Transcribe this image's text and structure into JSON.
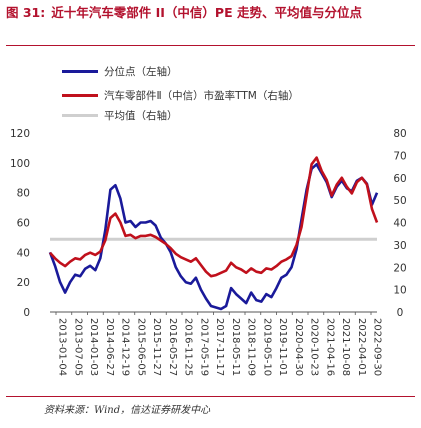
{
  "header": {
    "figure_number": "图 31:",
    "title": "近十年汽车零部件 II（中信）PE 走势、平均值与分位点"
  },
  "legend": [
    {
      "label": "分位点（左轴）",
      "color": "#1a1a9a"
    },
    {
      "label": "汽车零部件Ⅱ（中信）市盈率TTM（右轴）",
      "color": "#c0101c"
    },
    {
      "label": "平均值（右轴）",
      "color": "#cfcfcf"
    }
  ],
  "source": "资料来源：Wind，信达证券研发中心",
  "chart_data": {
    "type": "line",
    "left_axis": {
      "ticks": [
        "0",
        "20",
        "40",
        "60",
        "80",
        "100",
        "120"
      ],
      "ylim": [
        0,
        120
      ]
    },
    "right_axis": {
      "ticks": [
        "0",
        "10",
        "20",
        "30",
        "40",
        "50",
        "60",
        "70",
        "80"
      ],
      "ylim": [
        0,
        80
      ]
    },
    "x_ticks": [
      "2013-01-04",
      "2013-07-05",
      "2014-01-03",
      "2014-06-27",
      "2014-12-19",
      "2015-06-05",
      "2015-11-27",
      "2016-05-27",
      "2016-11-25",
      "2017-05-19",
      "2017-11-17",
      "2018-05-11",
      "2018-11-09",
      "2019-05-10",
      "2019-11-01",
      "2020-04-30",
      "2020-10-23",
      "2021-04-16",
      "2021-10-08",
      "2022-04-01",
      "2022-09-30"
    ],
    "average_pe": 32.5,
    "series": [
      {
        "name": "分位点（左轴）",
        "axis": "left",
        "values": [
          40,
          31,
          20,
          13,
          20,
          25,
          24,
          29,
          31,
          28,
          36,
          55,
          82,
          85,
          76,
          60,
          61,
          57,
          60,
          60,
          61,
          58,
          50,
          46,
          40,
          30,
          24,
          20,
          19,
          23,
          15,
          9,
          4,
          3,
          2,
          4,
          16,
          12,
          9,
          6,
          13,
          8,
          7,
          12,
          10,
          16,
          23,
          25,
          30,
          42,
          62,
          82,
          96,
          99,
          93,
          87,
          77,
          84,
          88,
          83,
          81,
          88,
          90,
          86,
          72,
          80
        ]
      },
      {
        "name": "汽车零部件Ⅱ（中信）市盈率TTM（右轴）",
        "axis": "right",
        "values": [
          26.5,
          24,
          22,
          20.5,
          22.5,
          24,
          23.5,
          25.5,
          26.5,
          25.5,
          27,
          32,
          42,
          44,
          40,
          34,
          34.5,
          33,
          34,
          34,
          34.5,
          33.5,
          32,
          30.5,
          28.5,
          26,
          24.5,
          23.5,
          22.5,
          24,
          21,
          18,
          16,
          16.5,
          17.5,
          18.5,
          22,
          20,
          19,
          17.5,
          19.5,
          18,
          17.5,
          19.5,
          19,
          20.5,
          22.5,
          23.5,
          25,
          30,
          38,
          52,
          66,
          69,
          63,
          59,
          52,
          57,
          60,
          56,
          53,
          58,
          60,
          57,
          46,
          40
        ]
      }
    ]
  }
}
